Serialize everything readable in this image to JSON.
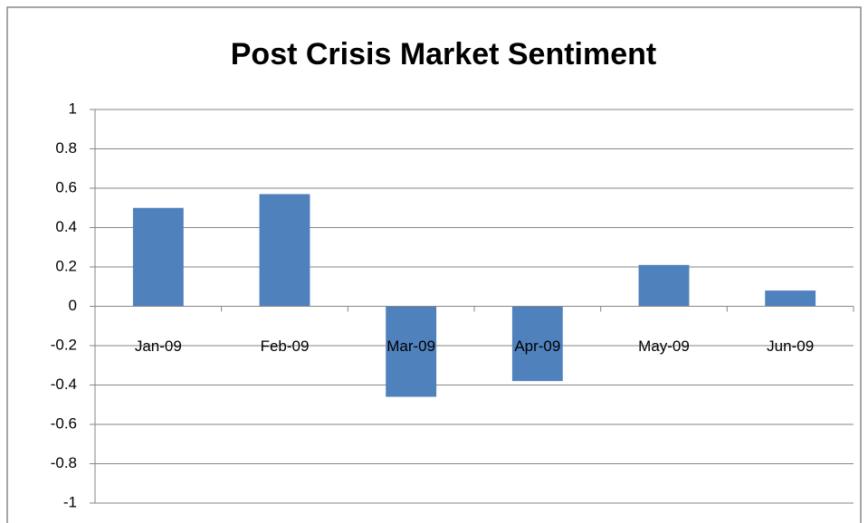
{
  "chart_data": {
    "type": "bar",
    "title": "Post Crisis Market Sentiment",
    "categories": [
      "Jan-09",
      "Feb-09",
      "Mar-09",
      "Apr-09",
      "May-09",
      "Jun-09"
    ],
    "values": [
      0.5,
      0.57,
      -0.46,
      -0.38,
      0.21,
      0.08
    ],
    "color": "#4f81bd",
    "ylim": [
      -1,
      1
    ],
    "yticks": [
      -1,
      -0.8,
      -0.6,
      -0.4,
      -0.2,
      0,
      0.2,
      0.4,
      0.6,
      0.8,
      1
    ],
    "grid": true
  }
}
